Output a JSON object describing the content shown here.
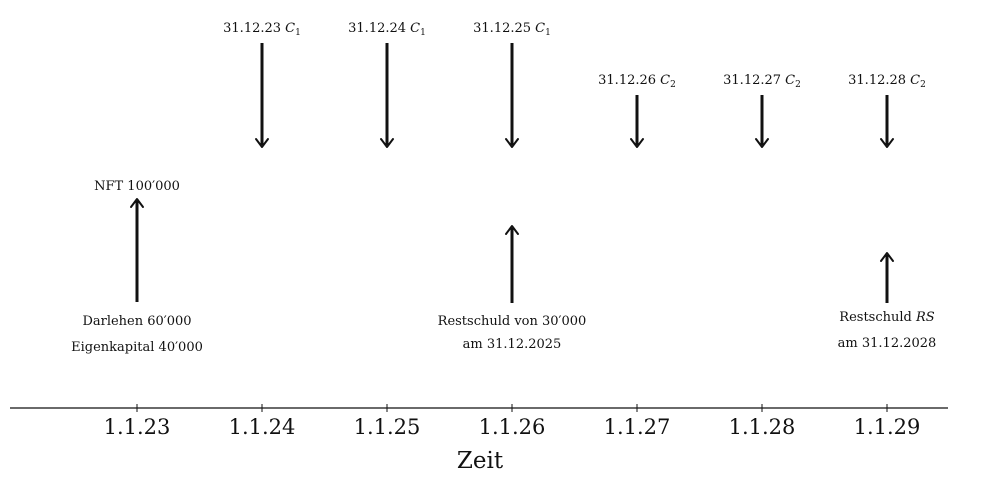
{
  "axis": {
    "title": "Zeit",
    "ticks": [
      "1.1.23",
      "1.1.24",
      "1.1.25",
      "1.1.26",
      "1.1.27",
      "1.1.28",
      "1.1.29"
    ]
  },
  "down_payments": [
    {
      "date": "31.12.23",
      "symbol": "C",
      "index": "1",
      "tick": 1
    },
    {
      "date": "31.12.24",
      "symbol": "C",
      "index": "1",
      "tick": 2
    },
    {
      "date": "31.12.25",
      "symbol": "C",
      "index": "1",
      "tick": 3
    },
    {
      "date": "31.12.26",
      "symbol": "C",
      "index": "2",
      "tick": 4
    },
    {
      "date": "31.12.27",
      "symbol": "C",
      "index": "2",
      "tick": 5
    },
    {
      "date": "31.12.28",
      "symbol": "C",
      "index": "2",
      "tick": 6
    }
  ],
  "inflows": [
    {
      "top_label": "NFT 100′000",
      "bottom_lines": [
        "Darlehen 60′000",
        "Eigenkapital 40′000"
      ],
      "tick": 0
    },
    {
      "top_label": "",
      "bottom_lines": [
        "Restschuld von 30′000",
        "am 31.12.2025"
      ],
      "tick": 3
    },
    {
      "top_label": "",
      "bottom_lines_rich": [
        [
          "Restschuld ",
          "RS"
        ],
        [
          "am 31.12.2028",
          ""
        ]
      ],
      "tick": 6
    }
  ]
}
